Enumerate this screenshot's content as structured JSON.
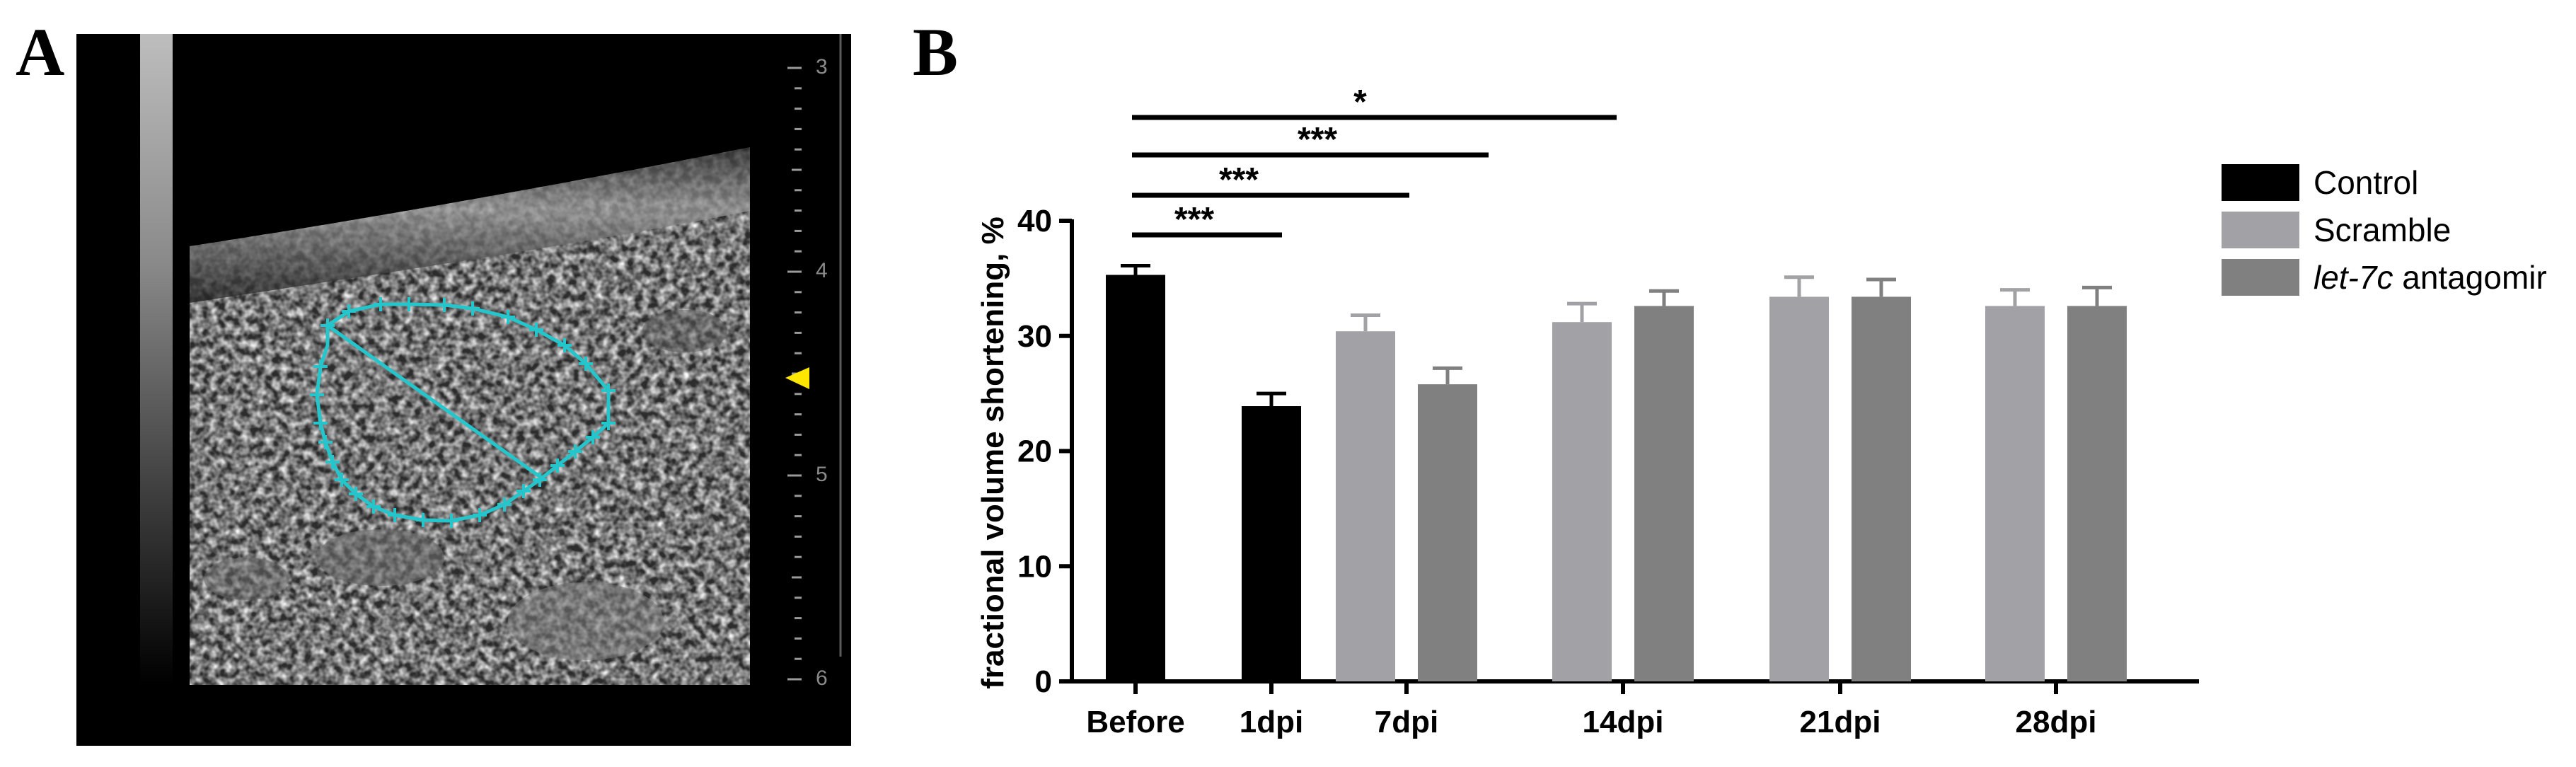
{
  "panels": {
    "a_label": "A",
    "b_label": "B"
  },
  "ultrasound": {
    "depth_ticks": [
      "3",
      "4",
      "5",
      "6"
    ],
    "tracing_color": "#24c6cc",
    "marker_color": "#ffe600"
  },
  "chart_data": {
    "type": "bar",
    "ylabel": "fractional volume shortening, %",
    "xlabel": "",
    "ylim": [
      0,
      40
    ],
    "yticks": [
      0,
      10,
      20,
      30,
      40
    ],
    "categories": [
      "Before",
      "1dpi",
      "7dpi",
      "14dpi",
      "21dpi",
      "28dpi"
    ],
    "series": [
      {
        "name": "Control",
        "name_italic": "",
        "name_rest": "Control",
        "color": "#000000",
        "values": [
          35.3,
          23.9,
          null,
          null,
          null,
          null
        ],
        "errors": [
          0.8,
          1.1,
          null,
          null,
          null,
          null
        ]
      },
      {
        "name": "Scramble",
        "name_italic": "",
        "name_rest": "Scramble",
        "color": "#a2a2a6",
        "values": [
          null,
          null,
          30.4,
          31.2,
          33.4,
          32.6
        ],
        "errors": [
          null,
          null,
          1.4,
          1.6,
          1.7,
          1.4
        ]
      },
      {
        "name": "let-7c antagomir",
        "name_italic": "let-7c",
        "name_rest": " antagomir",
        "color": "#808080",
        "values": [
          null,
          null,
          25.8,
          32.6,
          33.4,
          32.6
        ],
        "errors": [
          null,
          null,
          1.4,
          1.3,
          1.5,
          1.6
        ]
      }
    ],
    "annotations": [
      {
        "label": "***",
        "from": "Before",
        "to": "1dpi"
      },
      {
        "label": "***",
        "from": "Before",
        "to": "7dpi"
      },
      {
        "label": "***",
        "from": "Before",
        "to": "7dpi"
      },
      {
        "label": "*",
        "from": "Before",
        "to": "14dpi"
      }
    ]
  }
}
